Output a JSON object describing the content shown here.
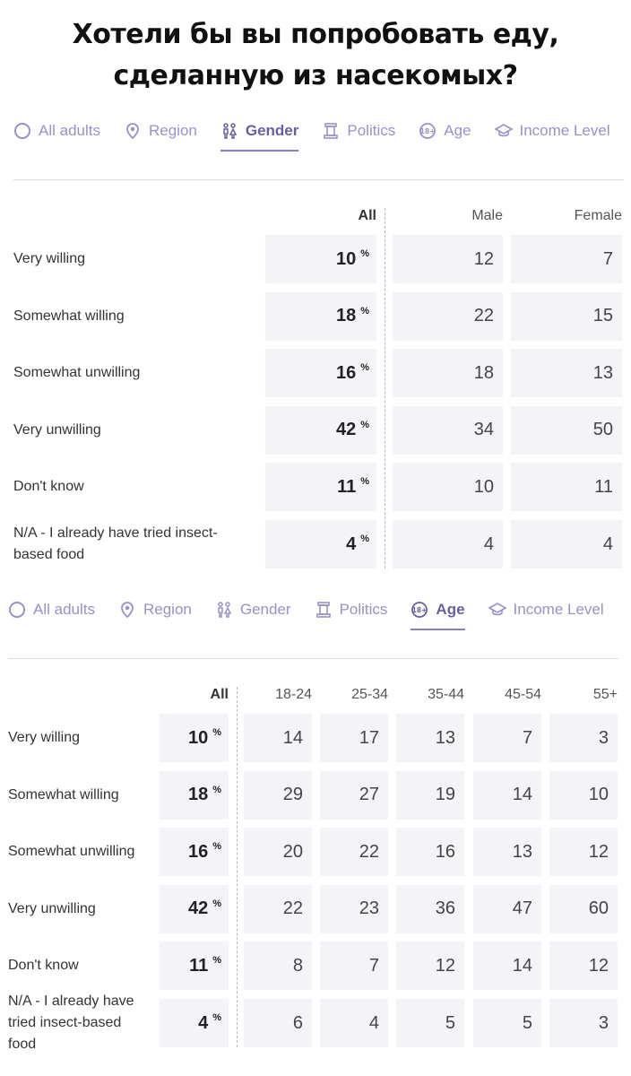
{
  "title": {
    "line1": "Хотели бы вы попробовать еду,",
    "line2": "сделанную из насекомых?"
  },
  "tabs": [
    {
      "label": "All adults",
      "icon": "circle-icon"
    },
    {
      "label": "Region",
      "icon": "location-pin-icon"
    },
    {
      "label": "Gender",
      "icon": "gender-icon"
    },
    {
      "label": "Politics",
      "icon": "pillar-icon"
    },
    {
      "label": "Age",
      "icon": "age-18plus-icon"
    },
    {
      "label": "Income Level",
      "icon": "graduation-cap-icon"
    }
  ],
  "percent_sign": "%",
  "rows": [
    "Very willing",
    "Somewhat willing",
    "Somewhat unwilling",
    "Very unwilling",
    "Don't know",
    "N/A - I already have tried insect-based food"
  ],
  "panel1": {
    "active_tab": "Gender",
    "columns": [
      "All",
      "Male",
      "Female"
    ],
    "values": [
      [
        "10",
        "12",
        "7"
      ],
      [
        "18",
        "22",
        "15"
      ],
      [
        "16",
        "18",
        "13"
      ],
      [
        "42",
        "34",
        "50"
      ],
      [
        "11",
        "10",
        "11"
      ],
      [
        "4",
        "4",
        "4"
      ]
    ]
  },
  "panel2": {
    "active_tab": "Age",
    "columns": [
      "All",
      "18-24",
      "25-34",
      "35-44",
      "45-54",
      "55+"
    ],
    "values": [
      [
        "10",
        "14",
        "17",
        "13",
        "7",
        "3"
      ],
      [
        "18",
        "29",
        "27",
        "19",
        "14",
        "10"
      ],
      [
        "16",
        "20",
        "22",
        "16",
        "13",
        "12"
      ],
      [
        "42",
        "22",
        "23",
        "36",
        "47",
        "60"
      ],
      [
        "11",
        "8",
        "7",
        "12",
        "14",
        "12"
      ],
      [
        "4",
        "6",
        "4",
        "5",
        "5",
        "3"
      ]
    ]
  },
  "colors": {
    "accent": "#8b7fc0",
    "tab_text": "#9b8fc9",
    "cell_bg": "#f4f4f8"
  }
}
